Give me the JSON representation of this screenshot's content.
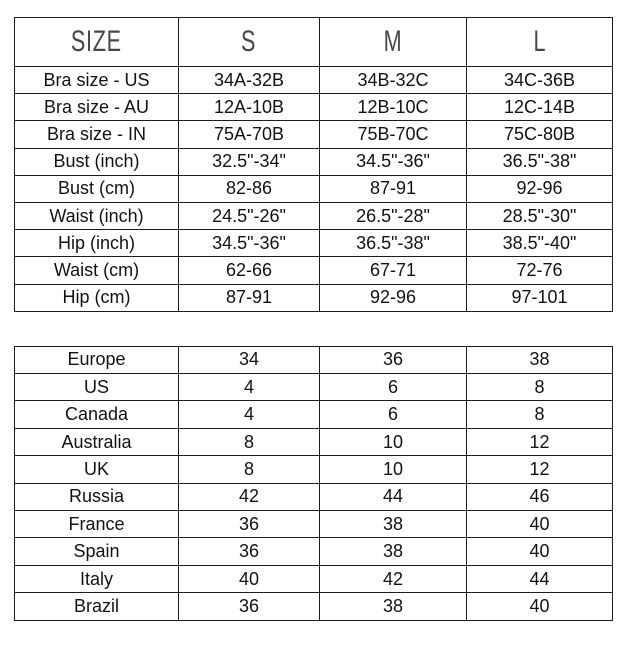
{
  "page": {
    "background": "#ffffff",
    "border_color": "#1c1c1c",
    "header_text_color": "#474747",
    "body_text_color": "#121212"
  },
  "chart_data": [
    {
      "type": "table",
      "name": "measurement-size-chart",
      "columns": [
        "SIZE",
        "S",
        "M",
        "L"
      ],
      "rows": [
        [
          "Bra size - US",
          "34A-32B",
          "34B-32C",
          "34C-36B"
        ],
        [
          "Bra size - AU",
          "12A-10B",
          "12B-10C",
          "12C-14B"
        ],
        [
          "Bra size - IN",
          "75A-70B",
          "75B-70C",
          "75C-80B"
        ],
        [
          "Bust (inch)",
          "32.5\"-34\"",
          "34.5\"-36\"",
          "36.5\"-38\""
        ],
        [
          "Bust (cm)",
          "82-86",
          "87-91",
          "92-96"
        ],
        [
          "Waist (inch)",
          "24.5\"-26\"",
          "26.5\"-28\"",
          "28.5\"-30\""
        ],
        [
          "Hip (inch)",
          "34.5\"-36\"",
          "36.5\"-38\"",
          "38.5\"-40\""
        ],
        [
          "Waist (cm)",
          "62-66",
          "67-71",
          "72-76"
        ],
        [
          "Hip (cm)",
          "87-91",
          "92-96",
          "97-101"
        ]
      ]
    },
    {
      "type": "table",
      "name": "international-size-conversion",
      "columns": [],
      "rows": [
        [
          "Europe",
          "34",
          "36",
          "38"
        ],
        [
          "US",
          "4",
          "6",
          "8"
        ],
        [
          "Canada",
          "4",
          "6",
          "8"
        ],
        [
          "Australia",
          "8",
          "10",
          "12"
        ],
        [
          "UK",
          "8",
          "10",
          "12"
        ],
        [
          "Russia",
          "42",
          "44",
          "46"
        ],
        [
          "France",
          "36",
          "38",
          "40"
        ],
        [
          "Spain",
          "36",
          "38",
          "40"
        ],
        [
          "Italy",
          "40",
          "42",
          "44"
        ],
        [
          "Brazil",
          "36",
          "38",
          "40"
        ]
      ]
    }
  ]
}
